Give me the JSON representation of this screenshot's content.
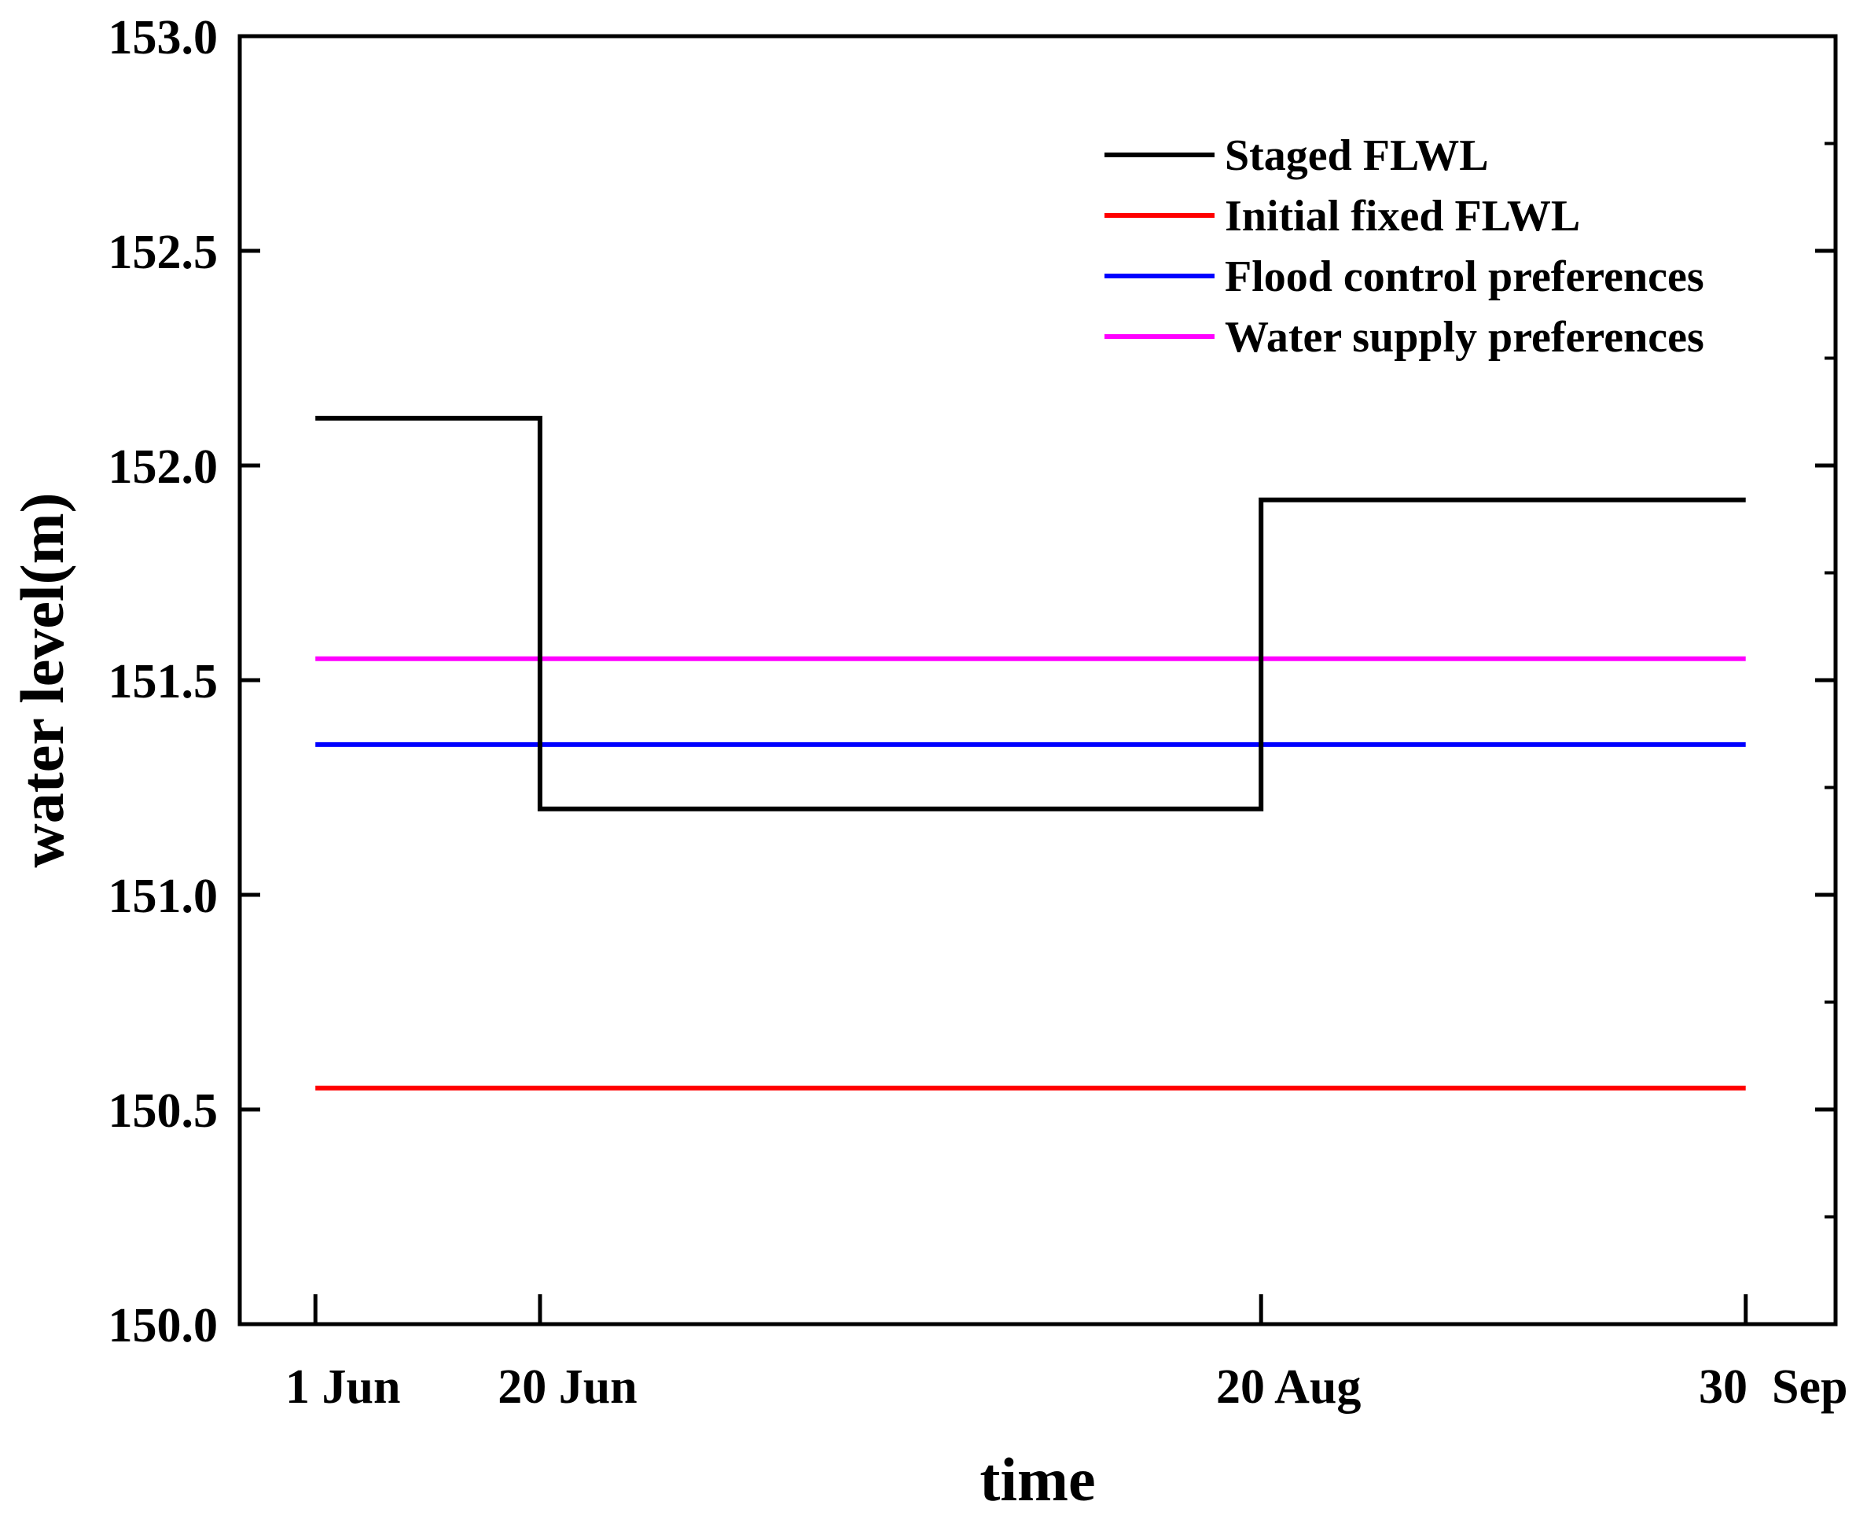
{
  "chart_data": {
    "type": "line",
    "title": "",
    "xlabel": "time",
    "ylabel": "water level(m)",
    "ylim": [
      150.0,
      153.0
    ],
    "yticks": [
      150.0,
      150.5,
      151.0,
      151.5,
      152.0,
      152.5,
      153.0
    ],
    "ytick_labels": [
      "150.0",
      "150.5",
      "151.0",
      "151.5",
      "152.0",
      "152.5",
      "153.0"
    ],
    "x_domain": [
      -6.4,
      128.6
    ],
    "xticks": [
      {
        "label": "1 Jun",
        "day": 0
      },
      {
        "label": "20 Jun",
        "day": 19
      },
      {
        "label": "20 Aug",
        "day": 80
      },
      {
        "label": "30  Sep",
        "day": 121
      }
    ],
    "legend_position": "top-right",
    "series": [
      {
        "name": "Staged FLWL",
        "color": "#000000",
        "step": true,
        "points": [
          [
            0,
            152.11
          ],
          [
            19,
            152.11
          ],
          [
            19,
            151.2
          ],
          [
            80,
            151.2
          ],
          [
            80,
            151.92
          ],
          [
            121,
            151.92
          ]
        ]
      },
      {
        "name": "Initial fixed FLWL",
        "color": "#ff0000",
        "points": [
          [
            0,
            150.55
          ],
          [
            121,
            150.55
          ]
        ]
      },
      {
        "name": "Flood control preferences",
        "color": "#0000ff",
        "points": [
          [
            0,
            151.35
          ],
          [
            121,
            151.35
          ]
        ]
      },
      {
        "name": "Water supply preferences",
        "color": "#ff00ff",
        "points": [
          [
            0,
            151.55
          ],
          [
            121,
            151.55
          ]
        ]
      }
    ]
  }
}
